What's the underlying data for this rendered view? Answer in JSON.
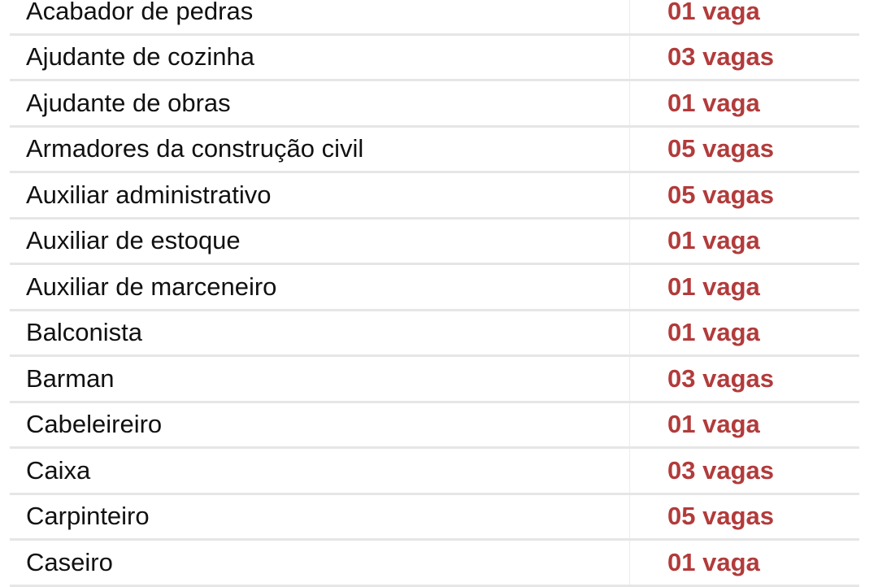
{
  "accent_color": "#b23b3b",
  "rows": [
    {
      "job": "Acabador de pedras",
      "vacancies": "01 vaga"
    },
    {
      "job": "Ajudante de cozinha",
      "vacancies": "03 vagas"
    },
    {
      "job": "Ajudante de obras",
      "vacancies": "01 vaga"
    },
    {
      "job": "Armadores da construção civil",
      "vacancies": "05 vagas"
    },
    {
      "job": "Auxiliar administrativo",
      "vacancies": "05 vagas"
    },
    {
      "job": "Auxiliar de estoque",
      "vacancies": "01 vaga"
    },
    {
      "job": "Auxiliar de marceneiro",
      "vacancies": "01 vaga"
    },
    {
      "job": "Balconista",
      "vacancies": "01 vaga"
    },
    {
      "job": "Barman",
      "vacancies": "03 vagas"
    },
    {
      "job": "Cabeleireiro",
      "vacancies": "01 vaga"
    },
    {
      "job": "Caixa",
      "vacancies": "03 vagas"
    },
    {
      "job": "Carpinteiro",
      "vacancies": "05 vagas"
    },
    {
      "job": "Caseiro",
      "vacancies": "01 vaga"
    }
  ]
}
